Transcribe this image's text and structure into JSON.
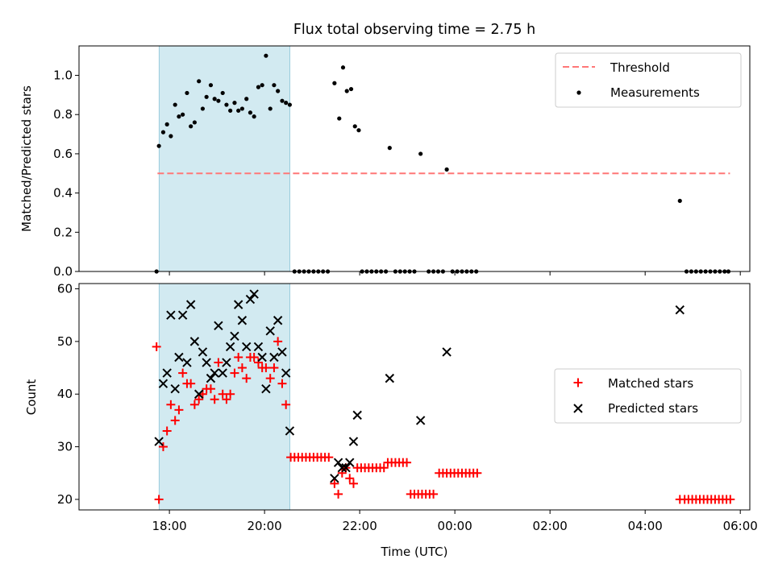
{
  "title": "Flux total observing time = 2.75 h",
  "chart_data": [
    {
      "type": "scatter",
      "panel": "top",
      "ylabel": "Matched/Predicted stars",
      "xlabel": "",
      "ylim": [
        0,
        1.15
      ],
      "yticks": [
        "0.0",
        "0.2",
        "0.4",
        "0.6",
        "0.8",
        "1.0"
      ],
      "x_unit": "hours from 00:00 of the first day",
      "xlim": [
        16.1,
        30.2
      ],
      "shaded_span": {
        "from": "17:47",
        "to": "20:32",
        "color": "#add8e6"
      },
      "threshold": {
        "name": "Threshold",
        "value": 0.5,
        "from": "17:45",
        "to": "05:47",
        "color": "#ff7777"
      },
      "legend": {
        "placement": "top-right",
        "entries": [
          "Threshold",
          "Measurements"
        ]
      },
      "series": [
        {
          "name": "Measurements",
          "color": "#000000",
          "marker": "dot",
          "points": [
            [
              17.73,
              0.0
            ],
            [
              17.78,
              0.64
            ],
            [
              17.87,
              0.71
            ],
            [
              17.95,
              0.75
            ],
            [
              18.03,
              0.69
            ],
            [
              18.12,
              0.85
            ],
            [
              18.2,
              0.79
            ],
            [
              18.28,
              0.8
            ],
            [
              18.37,
              0.91
            ],
            [
              18.45,
              0.74
            ],
            [
              18.53,
              0.76
            ],
            [
              18.62,
              0.97
            ],
            [
              18.7,
              0.83
            ],
            [
              18.78,
              0.89
            ],
            [
              18.87,
              0.95
            ],
            [
              18.95,
              0.88
            ],
            [
              19.03,
              0.87
            ],
            [
              19.12,
              0.91
            ],
            [
              19.2,
              0.85
            ],
            [
              19.28,
              0.82
            ],
            [
              19.37,
              0.86
            ],
            [
              19.45,
              0.82
            ],
            [
              19.53,
              0.83
            ],
            [
              19.62,
              0.88
            ],
            [
              19.7,
              0.81
            ],
            [
              19.78,
              0.79
            ],
            [
              19.87,
              0.94
            ],
            [
              19.95,
              0.95
            ],
            [
              20.03,
              1.1
            ],
            [
              20.12,
              0.83
            ],
            [
              20.2,
              0.95
            ],
            [
              20.28,
              0.92
            ],
            [
              20.37,
              0.87
            ],
            [
              20.45,
              0.86
            ],
            [
              20.53,
              0.85
            ],
            [
              20.63,
              0.0
            ],
            [
              20.73,
              0.0
            ],
            [
              20.83,
              0.0
            ],
            [
              20.93,
              0.0
            ],
            [
              21.03,
              0.0
            ],
            [
              21.13,
              0.0
            ],
            [
              21.23,
              0.0
            ],
            [
              21.33,
              0.0
            ],
            [
              21.47,
              0.96
            ],
            [
              21.57,
              0.78
            ],
            [
              21.65,
              1.04
            ],
            [
              21.73,
              0.92
            ],
            [
              21.82,
              0.93
            ],
            [
              21.9,
              0.74
            ],
            [
              21.98,
              0.72
            ],
            [
              22.05,
              0.0
            ],
            [
              22.15,
              0.0
            ],
            [
              22.25,
              0.0
            ],
            [
              22.35,
              0.0
            ],
            [
              22.45,
              0.0
            ],
            [
              22.55,
              0.0
            ],
            [
              22.63,
              0.63
            ],
            [
              22.75,
              0.0
            ],
            [
              22.85,
              0.0
            ],
            [
              22.95,
              0.0
            ],
            [
              23.05,
              0.0
            ],
            [
              23.15,
              0.0
            ],
            [
              23.28,
              0.6
            ],
            [
              23.45,
              0.0
            ],
            [
              23.55,
              0.0
            ],
            [
              23.65,
              0.0
            ],
            [
              23.75,
              0.0
            ],
            [
              23.83,
              0.52
            ],
            [
              23.95,
              0.0
            ],
            [
              24.05,
              0.0
            ],
            [
              24.15,
              0.0
            ],
            [
              24.25,
              0.0
            ],
            [
              24.35,
              0.0
            ],
            [
              24.45,
              0.0
            ],
            [
              28.73,
              0.36
            ],
            [
              28.87,
              0.0
            ],
            [
              28.97,
              0.0
            ],
            [
              29.07,
              0.0
            ],
            [
              29.17,
              0.0
            ],
            [
              29.27,
              0.0
            ],
            [
              29.37,
              0.0
            ],
            [
              29.47,
              0.0
            ],
            [
              29.57,
              0.0
            ],
            [
              29.67,
              0.0
            ],
            [
              29.75,
              0.0
            ]
          ]
        }
      ]
    },
    {
      "type": "scatter",
      "panel": "bottom",
      "ylabel": "Count",
      "xlabel": "Time (UTC)",
      "ylim": [
        18,
        61
      ],
      "yticks": [
        "20",
        "30",
        "40",
        "50",
        "60"
      ],
      "xticks": [
        "18:00",
        "20:00",
        "22:00",
        "00:00",
        "02:00",
        "04:00",
        "06:00"
      ],
      "x_unit": "hours from 00:00 of the first day",
      "xlim": [
        16.1,
        30.2
      ],
      "shaded_span": {
        "from": "17:47",
        "to": "20:32",
        "color": "#add8e6"
      },
      "legend": {
        "placement": "center-right",
        "entries": [
          "Matched stars",
          "Predicted stars"
        ]
      },
      "series": [
        {
          "name": "Matched stars",
          "color": "#ff0000",
          "marker": "plus",
          "points": [
            [
              17.73,
              49
            ],
            [
              17.78,
              20
            ],
            [
              17.87,
              30
            ],
            [
              17.95,
              33
            ],
            [
              18.03,
              38
            ],
            [
              18.12,
              35
            ],
            [
              18.2,
              37
            ],
            [
              18.28,
              44
            ],
            [
              18.37,
              42
            ],
            [
              18.45,
              42
            ],
            [
              18.53,
              38
            ],
            [
              18.62,
              39
            ],
            [
              18.7,
              40
            ],
            [
              18.78,
              41
            ],
            [
              18.87,
              41
            ],
            [
              18.95,
              39
            ],
            [
              19.03,
              46
            ],
            [
              19.12,
              40
            ],
            [
              19.2,
              39
            ],
            [
              19.28,
              40
            ],
            [
              19.37,
              44
            ],
            [
              19.45,
              47
            ],
            [
              19.53,
              45
            ],
            [
              19.62,
              43
            ],
            [
              19.7,
              47
            ],
            [
              19.78,
              47
            ],
            [
              19.87,
              46
            ],
            [
              19.95,
              45
            ],
            [
              20.03,
              45
            ],
            [
              20.12,
              43
            ],
            [
              20.2,
              45
            ],
            [
              20.28,
              50
            ],
            [
              20.37,
              42
            ],
            [
              20.45,
              38
            ],
            [
              20.55,
              28
            ],
            [
              20.63,
              28
            ],
            [
              20.71,
              28
            ],
            [
              20.79,
              28
            ],
            [
              20.87,
              28
            ],
            [
              20.95,
              28
            ],
            [
              21.03,
              28
            ],
            [
              21.11,
              28
            ],
            [
              21.19,
              28
            ],
            [
              21.27,
              28
            ],
            [
              21.35,
              28
            ],
            [
              21.47,
              23
            ],
            [
              21.55,
              21
            ],
            [
              21.63,
              25
            ],
            [
              21.71,
              26
            ],
            [
              21.79,
              24
            ],
            [
              21.87,
              23
            ],
            [
              21.95,
              26
            ],
            [
              22.03,
              26
            ],
            [
              22.11,
              26
            ],
            [
              22.19,
              26
            ],
            [
              22.27,
              26
            ],
            [
              22.35,
              26
            ],
            [
              22.43,
              26
            ],
            [
              22.51,
              26
            ],
            [
              22.59,
              27
            ],
            [
              22.67,
              27
            ],
            [
              22.75,
              27
            ],
            [
              22.83,
              27
            ],
            [
              22.91,
              27
            ],
            [
              22.99,
              27
            ],
            [
              23.07,
              21
            ],
            [
              23.15,
              21
            ],
            [
              23.23,
              21
            ],
            [
              23.31,
              21
            ],
            [
              23.39,
              21
            ],
            [
              23.47,
              21
            ],
            [
              23.55,
              21
            ],
            [
              23.67,
              25
            ],
            [
              23.75,
              25
            ],
            [
              23.83,
              25
            ],
            [
              23.91,
              25
            ],
            [
              23.99,
              25
            ],
            [
              24.07,
              25
            ],
            [
              24.15,
              25
            ],
            [
              24.23,
              25
            ],
            [
              24.31,
              25
            ],
            [
              24.39,
              25
            ],
            [
              24.47,
              25
            ],
            [
              28.73,
              20
            ],
            [
              28.83,
              20
            ],
            [
              28.91,
              20
            ],
            [
              28.99,
              20
            ],
            [
              29.07,
              20
            ],
            [
              29.15,
              20
            ],
            [
              29.23,
              20
            ],
            [
              29.31,
              20
            ],
            [
              29.39,
              20
            ],
            [
              29.47,
              20
            ],
            [
              29.55,
              20
            ],
            [
              29.63,
              20
            ],
            [
              29.71,
              20
            ],
            [
              29.79,
              20
            ]
          ]
        },
        {
          "name": "Predicted stars",
          "color": "#000000",
          "marker": "x",
          "points": [
            [
              17.78,
              31
            ],
            [
              17.87,
              42
            ],
            [
              17.95,
              44
            ],
            [
              18.03,
              55
            ],
            [
              18.12,
              41
            ],
            [
              18.2,
              47
            ],
            [
              18.28,
              55
            ],
            [
              18.37,
              46
            ],
            [
              18.45,
              57
            ],
            [
              18.53,
              50
            ],
            [
              18.62,
              40
            ],
            [
              18.7,
              48
            ],
            [
              18.78,
              46
            ],
            [
              18.87,
              43
            ],
            [
              18.95,
              44
            ],
            [
              19.03,
              53
            ],
            [
              19.12,
              44
            ],
            [
              19.2,
              46
            ],
            [
              19.28,
              49
            ],
            [
              19.37,
              51
            ],
            [
              19.45,
              57
            ],
            [
              19.53,
              54
            ],
            [
              19.62,
              49
            ],
            [
              19.7,
              58
            ],
            [
              19.78,
              59
            ],
            [
              19.87,
              49
            ],
            [
              19.95,
              47
            ],
            [
              20.03,
              41
            ],
            [
              20.12,
              52
            ],
            [
              20.2,
              47
            ],
            [
              20.28,
              54
            ],
            [
              20.37,
              48
            ],
            [
              20.45,
              44
            ],
            [
              20.53,
              33
            ],
            [
              21.47,
              24
            ],
            [
              21.55,
              27
            ],
            [
              21.63,
              26
            ],
            [
              21.71,
              26
            ],
            [
              21.79,
              27
            ],
            [
              21.87,
              31
            ],
            [
              21.95,
              36
            ],
            [
              22.63,
              43
            ],
            [
              23.28,
              35
            ],
            [
              23.83,
              48
            ],
            [
              28.73,
              56
            ]
          ]
        }
      ]
    }
  ]
}
